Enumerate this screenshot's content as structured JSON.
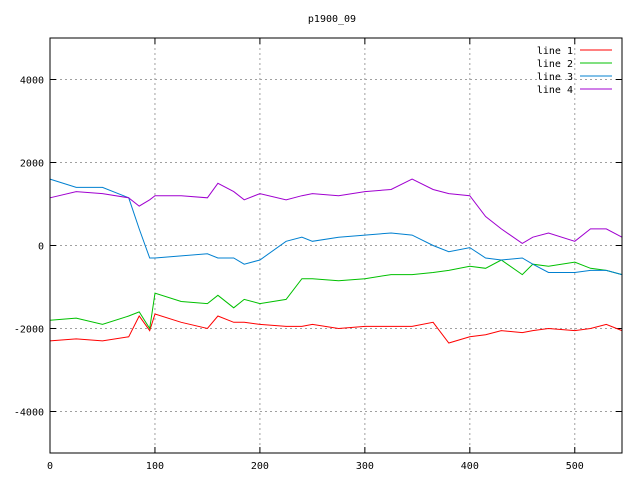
{
  "chart_data": {
    "type": "line",
    "title": "p1900_09",
    "xlabel": "",
    "ylabel": "",
    "xlim": [
      0,
      545
    ],
    "ylim": [
      -5000,
      5000
    ],
    "x_ticks": [
      0,
      100,
      200,
      300,
      400,
      500
    ],
    "y_ticks": [
      -4000,
      -2000,
      0,
      2000,
      4000
    ],
    "grid": true,
    "legend_position": "top-right",
    "x": [
      0,
      25,
      50,
      75,
      85,
      95,
      100,
      125,
      150,
      160,
      175,
      185,
      200,
      225,
      240,
      250,
      275,
      300,
      325,
      345,
      365,
      380,
      400,
      415,
      430,
      450,
      460,
      475,
      500,
      515,
      530,
      545
    ],
    "series": [
      {
        "name": "line 1",
        "color": "#ff0000",
        "values": [
          -2300,
          -2250,
          -2300,
          -2200,
          -1700,
          -2050,
          -1650,
          -1850,
          -2000,
          -1700,
          -1850,
          -1850,
          -1900,
          -1950,
          -1950,
          -1900,
          -2000,
          -1950,
          -1950,
          -1950,
          -1850,
          -2350,
          -2200,
          -2150,
          -2050,
          -2100,
          -2050,
          -2000,
          -2050,
          -2000,
          -1900,
          -2050
        ]
      },
      {
        "name": "line 2",
        "color": "#00c000",
        "values": [
          -1800,
          -1750,
          -1900,
          -1700,
          -1600,
          -2000,
          -1150,
          -1350,
          -1400,
          -1200,
          -1500,
          -1300,
          -1400,
          -1300,
          -800,
          -800,
          -850,
          -800,
          -700,
          -700,
          -650,
          -600,
          -500,
          -550,
          -350,
          -700,
          -450,
          -500,
          -400,
          -550,
          -600,
          -700
        ]
      },
      {
        "name": "line 3",
        "color": "#0080d0",
        "values": [
          1600,
          1400,
          1400,
          1150,
          400,
          -300,
          -300,
          -250,
          -200,
          -300,
          -300,
          -450,
          -350,
          100,
          200,
          100,
          200,
          250,
          300,
          250,
          0,
          -150,
          -50,
          -300,
          -350,
          -300,
          -450,
          -650,
          -650,
          -600,
          -600,
          -700
        ]
      },
      {
        "name": "line 4",
        "color": "#a000d0",
        "values": [
          1150,
          1300,
          1250,
          1150,
          950,
          1100,
          1200,
          1200,
          1150,
          1500,
          1300,
          1100,
          1250,
          1100,
          1200,
          1250,
          1200,
          1300,
          1350,
          1600,
          1350,
          1250,
          1200,
          700,
          400,
          50,
          200,
          300,
          100,
          400,
          400,
          200
        ]
      }
    ]
  }
}
